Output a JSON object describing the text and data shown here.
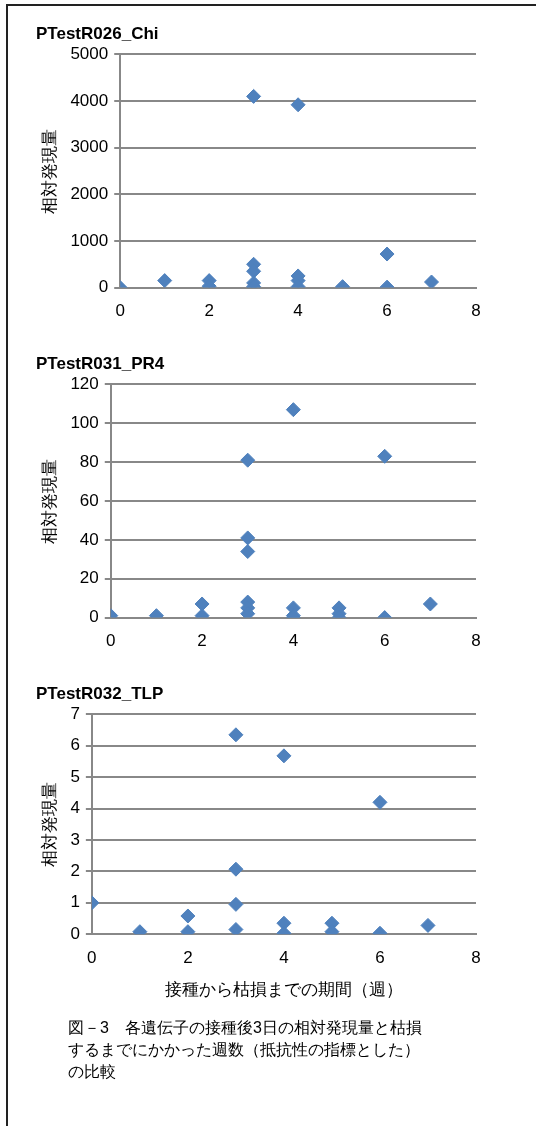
{
  "chart_data": [
    {
      "type": "scatter",
      "title": "PTestR026_Chi",
      "ylabel": "相対発現量",
      "color": "#4f81bd",
      "marker": "diamond",
      "grid": "y",
      "legend": false,
      "xlim": [
        0,
        8
      ],
      "xticks": [
        0,
        2,
        4,
        6,
        8
      ],
      "ylim": [
        0,
        5000
      ],
      "yticks": [
        0,
        1000,
        2000,
        3000,
        4000,
        5000
      ],
      "x": [
        0,
        1,
        2,
        2,
        3,
        3,
        3,
        3,
        3,
        4,
        4,
        4,
        4,
        5,
        6,
        6,
        7
      ],
      "values": [
        0,
        150,
        150,
        30,
        4100,
        500,
        350,
        100,
        20,
        3920,
        250,
        150,
        20,
        20,
        720,
        10,
        120
      ]
    },
    {
      "type": "scatter",
      "title": "PTestR031_PR4",
      "ylabel": "相対発現量",
      "color": "#4f81bd",
      "marker": "diamond",
      "grid": "y",
      "legend": false,
      "xlim": [
        0,
        8
      ],
      "xticks": [
        0,
        2,
        4,
        6,
        8
      ],
      "ylim": [
        0,
        120
      ],
      "yticks": [
        0,
        20,
        40,
        60,
        80,
        100,
        120
      ],
      "x": [
        0,
        1,
        2,
        2,
        3,
        3,
        3,
        3,
        3,
        3,
        4,
        4,
        4,
        4,
        5,
        5,
        5,
        6,
        6,
        7
      ],
      "values": [
        1,
        1,
        7,
        1,
        81,
        41,
        34,
        8,
        5,
        2,
        107,
        5,
        1,
        0,
        5,
        2,
        0,
        83,
        0,
        7
      ]
    },
    {
      "type": "scatter",
      "title": "PTestR032_TLP",
      "ylabel": "相対発現量",
      "xlabel": "接種から枯損までの期間（週）",
      "color": "#4f81bd",
      "marker": "diamond",
      "grid": "y",
      "legend": false,
      "xlim": [
        0,
        8
      ],
      "xticks": [
        0,
        2,
        4,
        6,
        8
      ],
      "ylim": [
        0,
        7
      ],
      "yticks": [
        0,
        1,
        2,
        3,
        4,
        5,
        6,
        7
      ],
      "x": [
        0,
        1,
        2,
        2,
        3,
        3,
        3,
        3,
        4,
        4,
        4,
        5,
        5,
        6,
        6,
        7
      ],
      "values": [
        1,
        0.08,
        0.58,
        0.08,
        6.35,
        2.07,
        0.95,
        0.15,
        5.68,
        0.35,
        0.03,
        0.35,
        0.08,
        4.2,
        0.03,
        0.28
      ],
      "annotations": [
        "図－3　各遺伝子の接種後3日の相対発現量と枯損するまでにかかった週数（抵抗性の指標とした）の比較"
      ]
    }
  ]
}
